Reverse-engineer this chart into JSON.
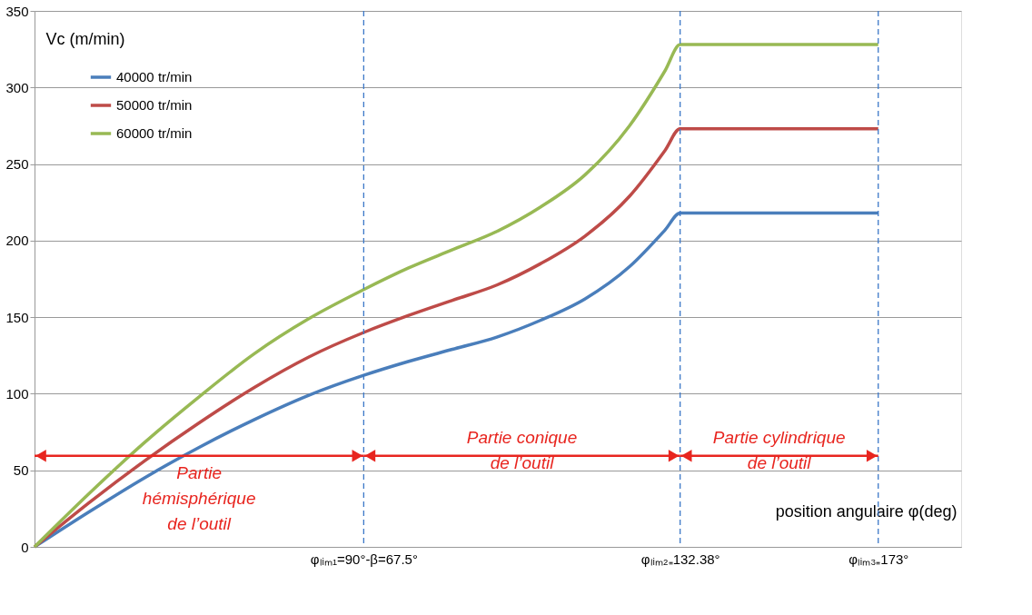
{
  "chart_data": {
    "type": "line",
    "xlabel": "position angulaire φ(deg)",
    "ylabel": "Vc (m/min)",
    "x": [
      0,
      11.25,
      22.5,
      33.75,
      45,
      56.25,
      67.5,
      76.6,
      85.7,
      94.8,
      103.8,
      112.9,
      122,
      129.3,
      132.38,
      173
    ],
    "series": [
      {
        "name": "40000 tr/min",
        "color": "#4a7ebb",
        "values": [
          0,
          23,
          45,
          65,
          83,
          99,
          112,
          121,
          129,
          137,
          148,
          162,
          183,
          207,
          218,
          218
        ]
      },
      {
        "name": "50000 tr/min",
        "color": "#be4b48",
        "values": [
          0,
          29,
          56,
          81,
          104,
          124,
          140,
          151,
          161,
          171,
          185,
          203,
          229,
          259,
          273,
          273
        ]
      },
      {
        "name": "60000 tr/min",
        "color": "#98b954",
        "values": [
          0,
          35,
          68,
          98,
          126,
          149,
          168,
          182,
          194,
          206,
          222,
          243,
          275,
          311,
          328,
          328
        ]
      }
    ],
    "xlim": [
      0,
      190
    ],
    "xticks": [
      {
        "value": 67.5,
        "label": "φₗᵢₘ₁=90°-β=67.5°"
      },
      {
        "value": 132.38,
        "label": "φₗᵢₘ₂₌132.38°"
      },
      {
        "value": 173,
        "label": "φₗᵢₘ₃₌173°"
      }
    ],
    "ylim": [
      0,
      350
    ],
    "yticks": [
      0,
      50,
      100,
      150,
      200,
      250,
      300,
      350
    ],
    "ref_lines": [
      {
        "axis": "x",
        "value": 67.5,
        "color": "#3c78c8",
        "line_style": "dashed"
      },
      {
        "axis": "x",
        "value": 132.38,
        "color": "#3c78c8",
        "line_style": "dashed"
      },
      {
        "axis": "x",
        "value": 173,
        "color": "#3c78c8",
        "line_style": "dashed"
      }
    ],
    "annotations": [
      "Partie\nhémisphérique\nde l’outil",
      "Partie conique\nde l’outil",
      "Partie cylindrique\nde l’outil"
    ],
    "grid": "y",
    "legend": "top left",
    "line_style": "solid",
    "marker": "none"
  }
}
